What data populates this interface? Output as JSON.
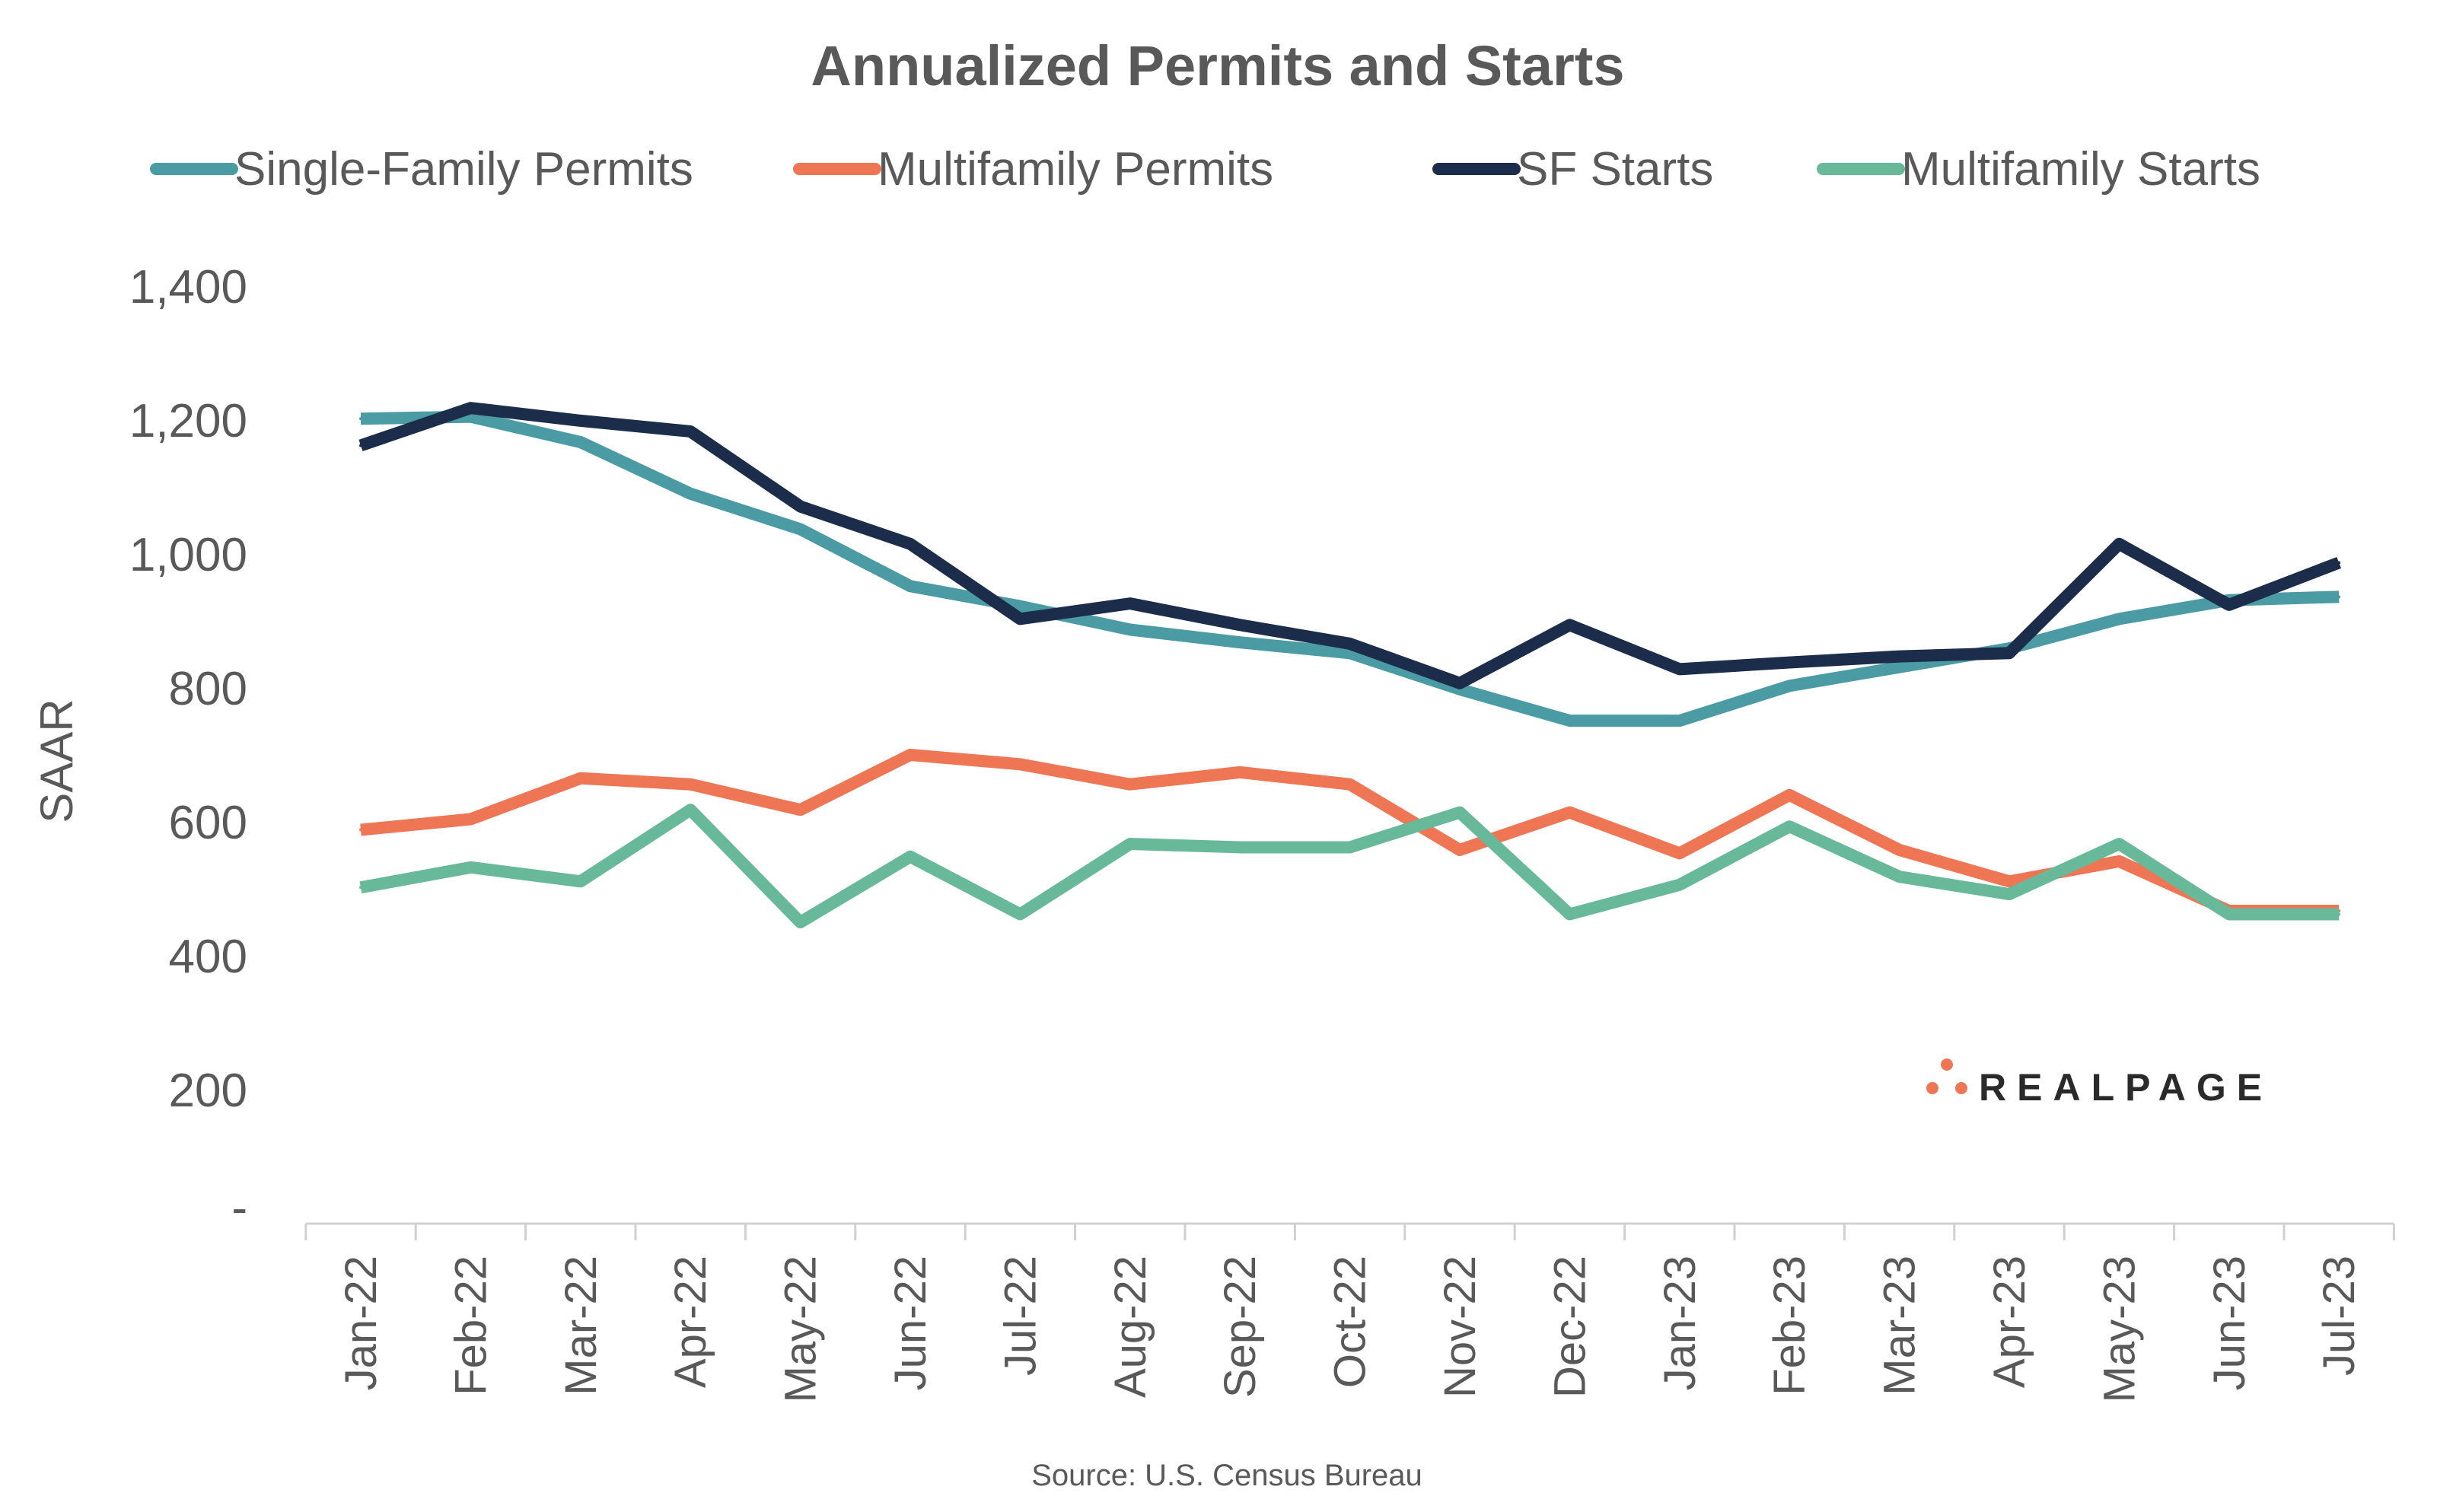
{
  "chart_data": {
    "type": "line",
    "title": "Annualized Permits and Starts",
    "ylabel": "SAAR",
    "xlabel": "",
    "ylim": [
      0,
      1400
    ],
    "yticks": [
      0,
      200,
      400,
      600,
      800,
      1000,
      1200,
      1400
    ],
    "ytick_labels": [
      "-",
      "200",
      "400",
      "600",
      "800",
      "1,000",
      "1,200",
      "1,400"
    ],
    "grid": false,
    "legend_position": "top",
    "categories": [
      "Jan-22",
      "Feb-22",
      "Mar-22",
      "Apr-22",
      "May-22",
      "Jun-22",
      "Jul-22",
      "Aug-22",
      "Sep-22",
      "Oct-22",
      "Nov-22",
      "Dec-22",
      "Jan-23",
      "Feb-23",
      "Mar-23",
      "Apr-23",
      "May-23",
      "Jun-23",
      "Jul-23"
    ],
    "series": [
      {
        "name": "Single-Family Permits",
        "color": "#4a9ba3",
        "values": [
          1202,
          1205,
          1167,
          1090,
          1037,
          952,
          922,
          887,
          868,
          852,
          798,
          751,
          751,
          803,
          831,
          859,
          903,
          931,
          936
        ]
      },
      {
        "name": "Multifamily Permits",
        "color": "#ee7654",
        "values": [
          588,
          604,
          665,
          656,
          618,
          700,
          686,
          656,
          674,
          656,
          558,
          614,
          553,
          640,
          558,
          511,
          541,
          467,
          467
        ]
      },
      {
        "name": "SF Starts",
        "color": "#1b2d4a",
        "values": [
          1162,
          1218,
          1199,
          1183,
          1071,
          1015,
          903,
          926,
          894,
          866,
          807,
          894,
          828,
          838,
          847,
          852,
          1015,
          924,
          987
        ]
      },
      {
        "name": "Multifamily Starts",
        "color": "#68b89a",
        "values": [
          502,
          532,
          511,
          618,
          450,
          548,
          462,
          567,
          562,
          562,
          614,
          462,
          506,
          593,
          518,
          492,
          567,
          462,
          462
        ]
      }
    ],
    "source": "Source: U.S. Census Bureau"
  },
  "logo": {
    "text": "REALPAGE",
    "color": "#ee7654"
  }
}
